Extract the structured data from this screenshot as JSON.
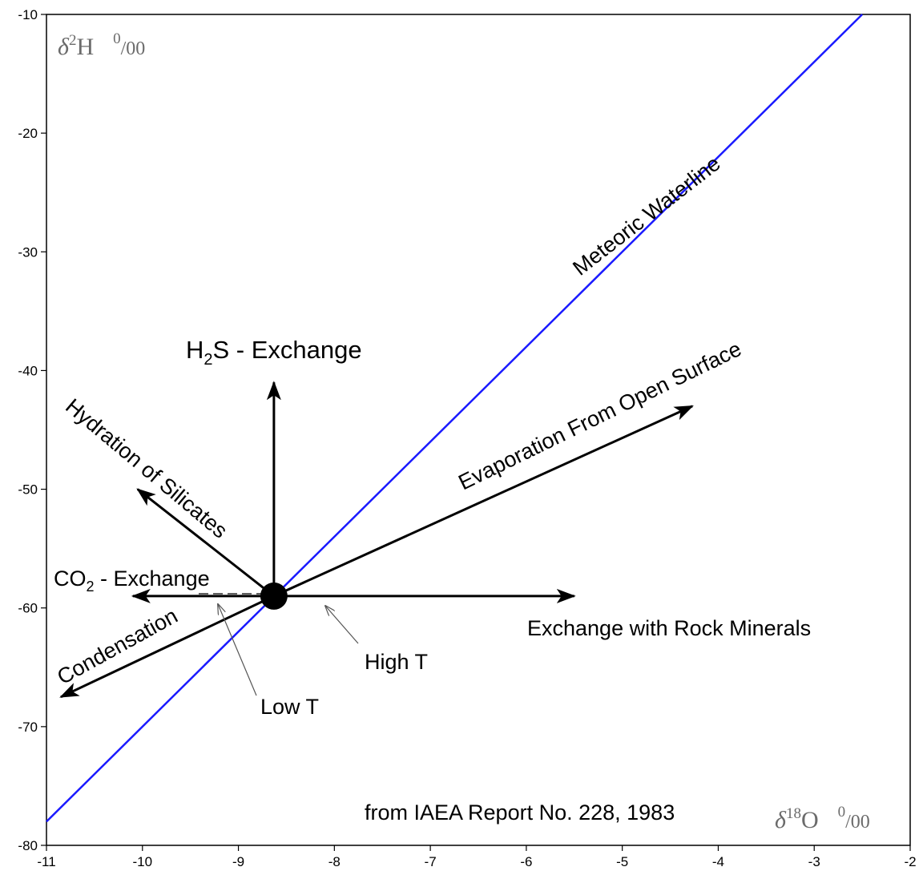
{
  "chart_data": {
    "type": "line",
    "xlabel": "δ18O 0/00",
    "ylabel": "δ2H 0/00",
    "xlim": [
      -11,
      -2
    ],
    "ylim": [
      -80,
      -10
    ],
    "x_ticks": [
      -11,
      -10,
      -9,
      -8,
      -7,
      -6,
      -5,
      -4,
      -3,
      -2
    ],
    "y_ticks": [
      -80,
      -70,
      -60,
      -50,
      -40,
      -30,
      -20,
      -10
    ],
    "grid": false,
    "series": [
      {
        "name": "Meteoric Waterline",
        "color": "#1a1aff",
        "x": [
          -11,
          -2.5
        ],
        "y": [
          -78,
          -10
        ]
      }
    ],
    "origin_point": {
      "x": -8.63,
      "y": -59
    },
    "arrows": [
      {
        "label": "H2S - Exchange",
        "to": {
          "x": -8.63,
          "y": -41
        }
      },
      {
        "label": "Evaporation From Open Surface",
        "to": {
          "x": -4.27,
          "y": -43
        }
      },
      {
        "label": "Hydration of Silicates",
        "to": {
          "x": -10.05,
          "y": -50
        }
      },
      {
        "label": "CO2 - Exchange",
        "to": {
          "x": -10.1,
          "y": -59
        }
      },
      {
        "label": "Condensation",
        "to": {
          "x": -10.85,
          "y": -67.5
        }
      },
      {
        "label": "Exchange with Rock Minerals",
        "to": {
          "x": -5.5,
          "y": -59
        }
      }
    ],
    "labels": {
      "meteoric": "Meteoric Waterline",
      "h2s_main": "H",
      "h2s_sub": "2",
      "h2s_rest": "S - Exchange",
      "evaporation": "Evaporation From Open Surface",
      "hydration": "Hydration of Silicates",
      "co2_main": "CO",
      "co2_sub": "2",
      "co2_rest": " - Exchange",
      "condensation": "Condensation",
      "rock": "Exchange with Rock Minerals",
      "high_t": "High T",
      "low_t": "Low T",
      "source": "from IAEA Report No. 228, 1983",
      "y_axis_delta": "δ",
      "y_axis_sup": "2",
      "y_axis_elem": "H",
      "y_axis_permil_sup": "0",
      "y_axis_permil_sub": "/00",
      "x_axis_delta": "δ",
      "x_axis_sup": "18",
      "x_axis_elem": "O",
      "x_axis_permil_sup": "0",
      "x_axis_permil_sub": "/00"
    }
  }
}
